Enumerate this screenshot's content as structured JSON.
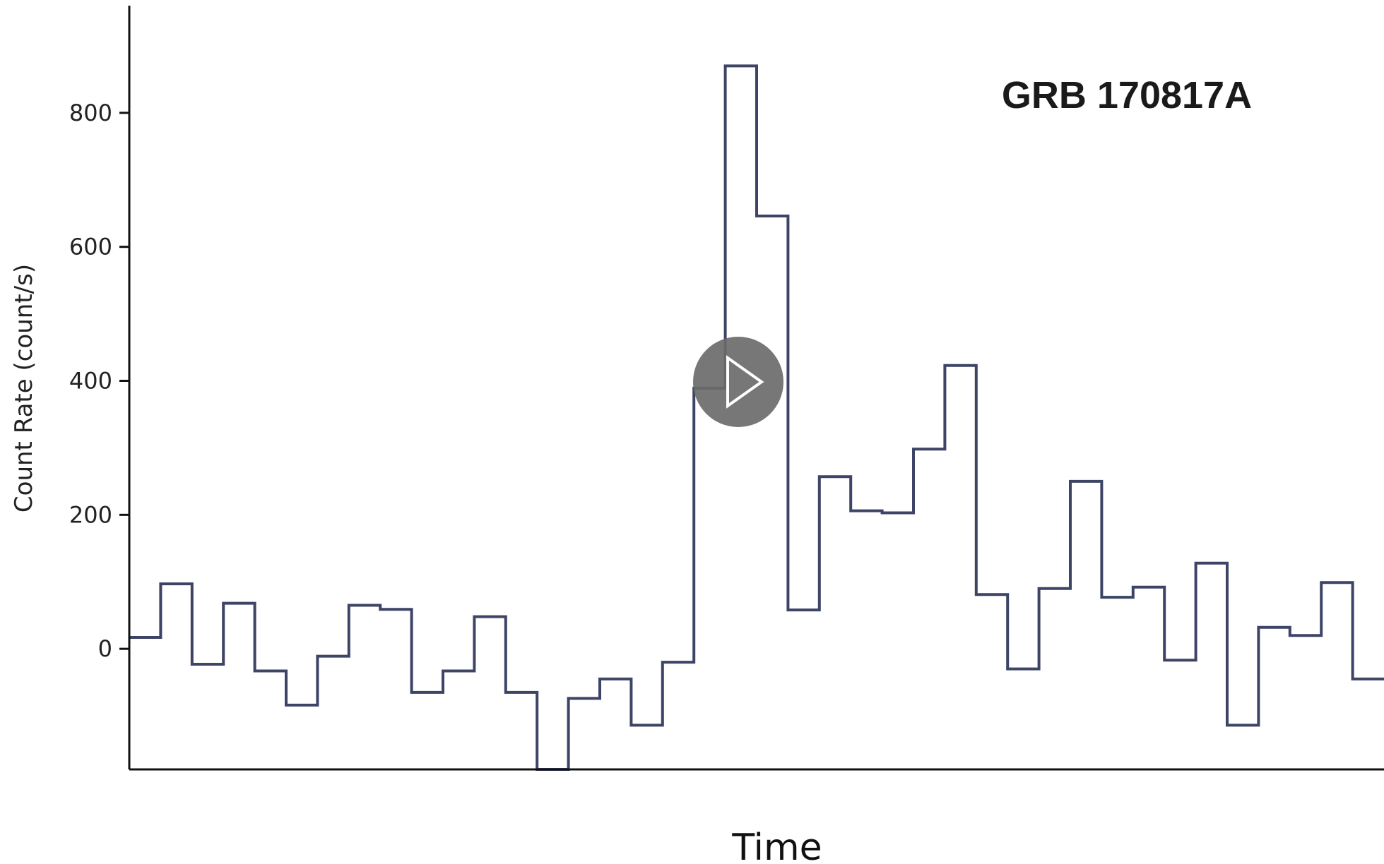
{
  "chart_data": {
    "type": "line",
    "style": "step",
    "annotation": "GRB 170817A",
    "xlabel": "Time",
    "ylabel": "Count Rate (count/s)",
    "ylim": [
      -180,
      960
    ],
    "yticks": [
      0,
      200,
      400,
      600,
      800
    ],
    "xticks_shown": false,
    "grid": false,
    "series": [
      {
        "values": [
          17,
          97,
          -23,
          68,
          -33,
          -84,
          -11,
          65,
          59,
          -65,
          -33,
          48,
          -65,
          -180,
          -74,
          -45,
          -114,
          -20,
          389,
          870,
          646,
          58,
          257,
          206,
          203,
          298,
          423,
          81,
          -30,
          90,
          250,
          77,
          92,
          -17,
          128,
          -114,
          32,
          20,
          99,
          -45
        ],
        "color": "#3d4466"
      }
    ]
  },
  "overlay": {
    "icon": "play-icon",
    "color": "#6b6b6b"
  }
}
